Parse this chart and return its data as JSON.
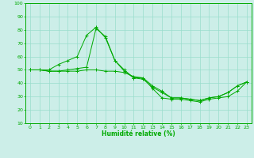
{
  "x": [
    0,
    1,
    2,
    3,
    4,
    5,
    6,
    7,
    8,
    9,
    10,
    11,
    12,
    13,
    14,
    15,
    16,
    17,
    18,
    19,
    20,
    21,
    22,
    23
  ],
  "line1": [
    50,
    50,
    50,
    54,
    57,
    60,
    76,
    82,
    74,
    57,
    49,
    44,
    43,
    37,
    33,
    29,
    29,
    28,
    27,
    29,
    30,
    33,
    38,
    41
  ],
  "line2": [
    50,
    50,
    49,
    49,
    49,
    49,
    50,
    50,
    49,
    49,
    48,
    45,
    44,
    36,
    29,
    28,
    28,
    27,
    26,
    28,
    29,
    30,
    34,
    41
  ],
  "line3": [
    50,
    50,
    49,
    49,
    50,
    51,
    52,
    81,
    75,
    57,
    50,
    44,
    44,
    38,
    34,
    29,
    29,
    28,
    27,
    29,
    30,
    33,
    38,
    41
  ],
  "bg_color": "#cceee8",
  "grid_color": "#99ddcc",
  "line_color": "#00aa00",
  "xlabel": "Humidité relative (%)",
  "ylim": [
    10,
    100
  ],
  "xlim": [
    -0.5,
    23.5
  ],
  "yticks": [
    10,
    20,
    30,
    40,
    50,
    60,
    70,
    80,
    90,
    100
  ],
  "xticks": [
    0,
    1,
    2,
    3,
    4,
    5,
    6,
    7,
    8,
    9,
    10,
    11,
    12,
    13,
    14,
    15,
    16,
    17,
    18,
    19,
    20,
    21,
    22,
    23
  ]
}
